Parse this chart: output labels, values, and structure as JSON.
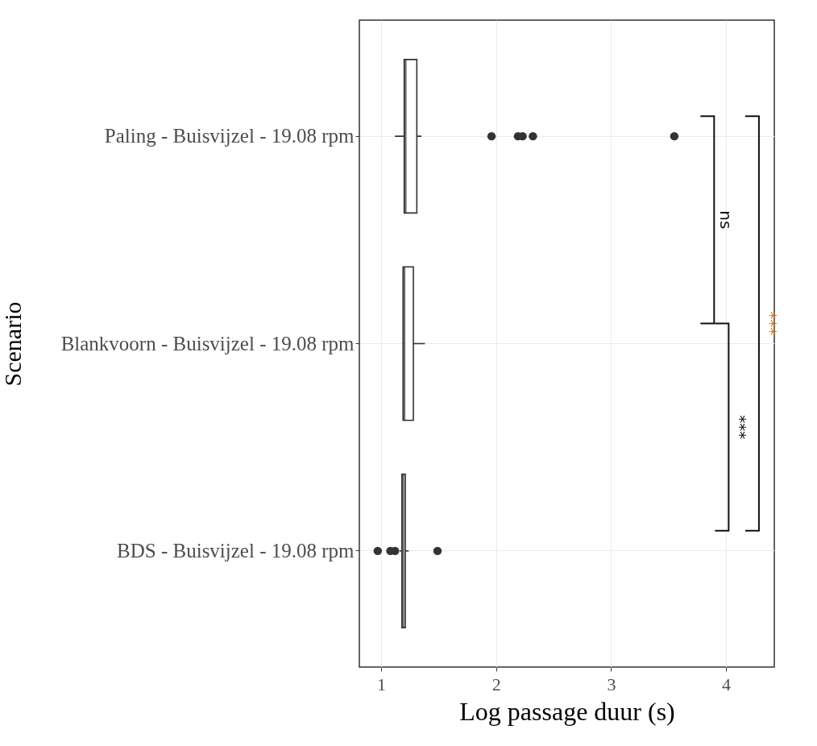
{
  "chart_data": {
    "type": "box",
    "orientation": "horizontal",
    "xlabel": "Log passage duur (s)",
    "ylabel": "Scenario",
    "categories": [
      "Paling - Buisvijzel - 19.08 rpm",
      "Blankvoorn - Buisvijzel - 19.08 rpm",
      "BDS - Buisvijzel - 19.08 rpm"
    ],
    "boxes": [
      {
        "low": 1.12,
        "q1": 1.2,
        "median": 1.21,
        "q3": 1.31,
        "high": 1.35,
        "outliers": [
          1.96,
          2.19,
          2.23,
          2.32,
          3.55
        ]
      },
      {
        "low": 1.19,
        "q1": 1.19,
        "median": 1.2,
        "q3": 1.28,
        "high": 1.38
      },
      {
        "low": 1.16,
        "q1": 1.18,
        "median": 1.19,
        "q3": 1.21,
        "high": 1.24,
        "outliers": [
          0.97,
          1.08,
          1.12,
          1.49
        ]
      }
    ],
    "xlim": [
      0.81,
      4.42
    ],
    "xticks": [
      1,
      2,
      3,
      4
    ],
    "grid": true,
    "annotations": [
      "ns",
      "***",
      "***"
    ]
  }
}
